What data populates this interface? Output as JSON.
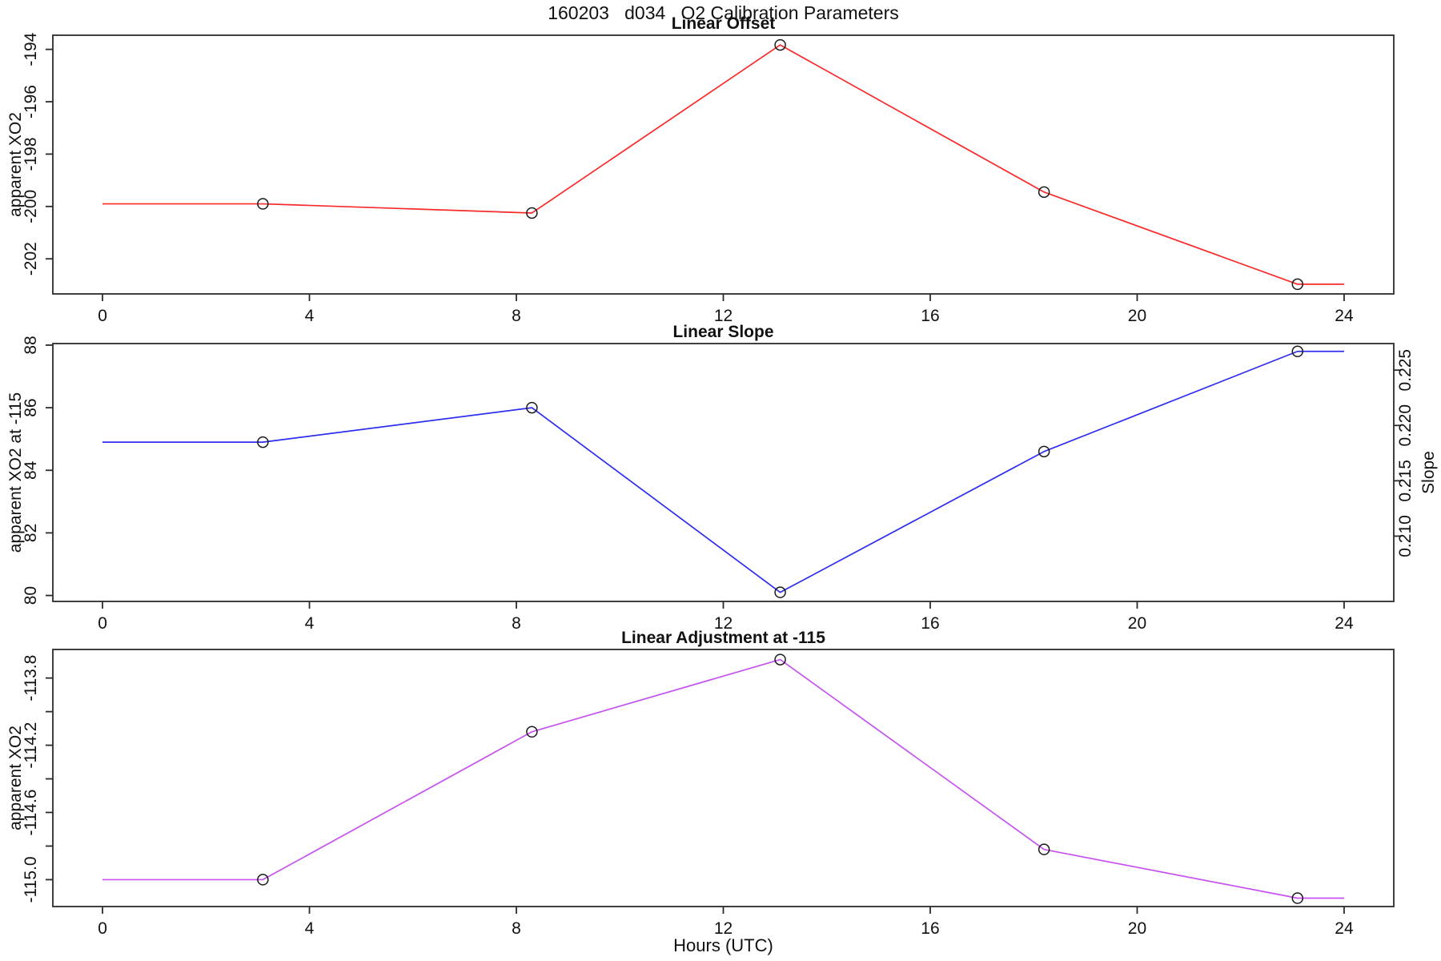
{
  "header": {
    "title": "160203   d034   O2 Calibration Parameters"
  },
  "x_axis": {
    "label": "Hours (UTC)",
    "ticks": [
      0,
      4,
      8,
      12,
      16,
      20,
      24
    ],
    "xlim": [
      -0.96,
      24.96
    ]
  },
  "chart_data": [
    {
      "type": "line",
      "title": "Linear Offset",
      "ylabel": "apparent XO2",
      "color": "#f92a2a",
      "marker": "open-circle",
      "marker_color": "#1a1a1a",
      "x": [
        3.1,
        8.3,
        13.1,
        18.2,
        23.1
      ],
      "values": [
        -199.9,
        -200.25,
        -193.83,
        -199.45,
        -202.97
      ],
      "line_x": [
        0,
        3.1,
        8.3,
        13.1,
        18.2,
        23.1,
        24
      ],
      "line_values": [
        -199.9,
        -199.9,
        -200.25,
        -193.83,
        -199.45,
        -202.97,
        -202.97
      ],
      "y_ticks": [
        -194,
        -196,
        -198,
        -200,
        -202
      ],
      "y_tick_labels": [
        "-194",
        "-196",
        "-198",
        "-200",
        "-202"
      ],
      "ylim": [
        -203.34,
        -193.46
      ],
      "grid": false
    },
    {
      "type": "line",
      "title": "Linear Slope",
      "ylabel": "apparent XO2 at -115",
      "ylabel_right": "Slope",
      "color": "#2d2df0",
      "marker": "open-circle",
      "marker_color": "#1a1a1a",
      "x": [
        3.1,
        8.3,
        13.1,
        18.2,
        23.1
      ],
      "values": [
        84.9,
        86.0,
        80.1,
        84.6,
        87.8
      ],
      "line_x": [
        0,
        3.1,
        8.3,
        13.1,
        18.2,
        23.1,
        24
      ],
      "line_values": [
        84.9,
        84.9,
        86.0,
        80.1,
        84.6,
        87.8,
        87.8
      ],
      "y_ticks": [
        88,
        86,
        84,
        82,
        80
      ],
      "y_tick_labels": [
        "88",
        "86",
        "84",
        "82",
        "80"
      ],
      "ylim": [
        79.81,
        88.05
      ],
      "right_ticks": [
        0.225,
        0.22,
        0.215,
        0.21
      ],
      "right_tick_labels": [
        "0.225",
        "0.220",
        "0.215",
        "0.210"
      ],
      "right_ylim": [
        0.2041,
        0.2274
      ],
      "slope_values": [
        0.2185,
        0.2217,
        0.2049,
        0.2177,
        0.2267
      ],
      "grid": false
    },
    {
      "type": "line",
      "title": "Linear Adjustment at -115",
      "ylabel": "apparent XO2",
      "color": "#c653f0",
      "marker": "open-circle",
      "marker_color": "#1a1a1a",
      "x": [
        3.1,
        8.3,
        13.1,
        18.2,
        23.1
      ],
      "values": [
        -115.0,
        -114.12,
        -113.69,
        -114.82,
        -115.11
      ],
      "line_x": [
        0,
        3.1,
        8.3,
        13.1,
        18.2,
        23.1,
        24
      ],
      "line_values": [
        -115.0,
        -115.0,
        -114.12,
        -113.69,
        -114.82,
        -115.11,
        -115.11
      ],
      "y_ticks": [
        -113.8,
        -114.0,
        -114.2,
        -114.4,
        -114.6,
        -114.8,
        -115.0
      ],
      "y_tick_labels": [
        "-113.8",
        "",
        "-114.2",
        "",
        "-114.6",
        "",
        "-115.0"
      ],
      "ylim": [
        -115.16,
        -113.63
      ],
      "grid": false
    }
  ]
}
